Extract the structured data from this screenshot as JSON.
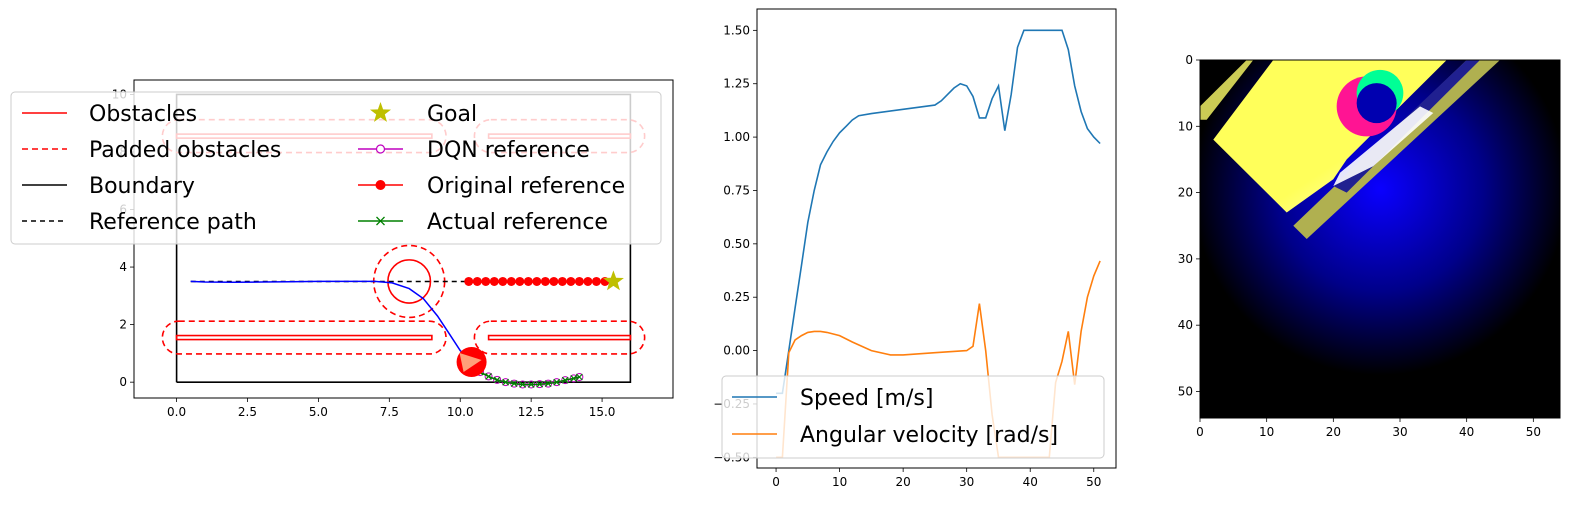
{
  "chart_data": [
    {
      "type": "line",
      "xlim": [
        -1.5,
        17.5
      ],
      "ylim": [
        -0.55,
        10.5
      ],
      "xticks": [
        0.0,
        2.5,
        5.0,
        7.5,
        10.0,
        12.5,
        15.0
      ],
      "xtick_labels": [
        "0.0",
        "2.5",
        "5.0",
        "7.5",
        "10.0",
        "12.5",
        "15.0"
      ],
      "yticks": [
        0,
        2,
        4,
        6,
        8,
        10
      ],
      "ytick_labels": [
        "0",
        "2",
        "4",
        "6",
        "8",
        "10"
      ],
      "legend": {
        "placement": "top",
        "ncol": 2,
        "entries": [
          "Obstacles",
          "Padded obstacles",
          "Boundary",
          "Reference path",
          "Goal",
          "DQN reference",
          "Original reference",
          "Actual reference"
        ]
      },
      "boundary": [
        [
          0,
          0
        ],
        [
          16,
          0
        ],
        [
          16,
          10
        ],
        [
          0,
          10
        ],
        [
          0,
          0
        ]
      ],
      "obstacles": [
        {
          "shape": "bar",
          "x": [
            0,
            9
          ],
          "y": [
            1.48,
            1.62
          ],
          "pad": 0.5
        },
        {
          "shape": "bar",
          "x": [
            11,
            16
          ],
          "y": [
            1.48,
            1.62
          ],
          "pad": 0.5
        },
        {
          "shape": "bar",
          "x": [
            0,
            9
          ],
          "y": [
            8.48,
            8.62
          ],
          "pad": 0.5
        },
        {
          "shape": "bar",
          "x": [
            11,
            16
          ],
          "y": [
            8.48,
            8.62
          ],
          "pad": 0.5
        },
        {
          "shape": "circle",
          "center": [
            8.2,
            3.5
          ],
          "radius": 0.75,
          "pad": 0.5
        }
      ],
      "reference_path": {
        "x": [
          0.5,
          15.4
        ],
        "y": [
          3.5,
          3.5
        ]
      },
      "goal": [
        15.4,
        3.5
      ],
      "robot": {
        "x": 10.4,
        "y": 0.7
      },
      "trajectory": {
        "x": [
          0.5,
          1.0,
          2.0,
          3.0,
          4.0,
          5.0,
          6.0,
          7.0,
          7.6,
          8.2,
          8.7,
          9.2,
          9.6,
          10.0,
          10.4
        ],
        "y": [
          3.5,
          3.48,
          3.47,
          3.48,
          3.49,
          3.5,
          3.5,
          3.5,
          3.45,
          3.25,
          2.9,
          2.3,
          1.7,
          1.1,
          0.7
        ]
      },
      "original_reference": {
        "x": [
          10.3,
          10.6,
          10.9,
          11.2,
          11.5,
          11.8,
          12.1,
          12.4,
          12.7,
          13.0,
          13.3,
          13.6,
          13.9,
          14.2,
          14.5,
          14.8,
          15.1
        ],
        "y": [
          3.5,
          3.5,
          3.5,
          3.5,
          3.5,
          3.5,
          3.5,
          3.5,
          3.5,
          3.5,
          3.5,
          3.5,
          3.5,
          3.5,
          3.5,
          3.5,
          3.5
        ]
      },
      "dqn_reference": {
        "x": [
          10.7,
          11.0,
          11.3,
          11.6,
          11.9,
          12.2,
          12.5,
          12.8,
          13.1,
          13.4,
          13.7,
          14.0,
          14.2
        ],
        "y": [
          0.35,
          0.2,
          0.08,
          0.0,
          -0.05,
          -0.08,
          -0.08,
          -0.07,
          -0.05,
          0.0,
          0.07,
          0.13,
          0.18
        ]
      },
      "actual_reference": {
        "x": [
          10.7,
          11.0,
          11.3,
          11.6,
          11.9,
          12.2,
          12.5,
          12.8,
          13.1,
          13.4,
          13.7,
          14.0,
          14.2
        ],
        "y": [
          0.35,
          0.2,
          0.08,
          0.0,
          -0.05,
          -0.08,
          -0.08,
          -0.07,
          -0.05,
          0.0,
          0.07,
          0.13,
          0.18
        ]
      }
    },
    {
      "type": "line",
      "xlim": [
        -3,
        53.5
      ],
      "ylim": [
        -0.55,
        1.6
      ],
      "xticks": [
        0,
        10,
        20,
        30,
        40,
        50
      ],
      "xtick_labels": [
        "0",
        "10",
        "20",
        "30",
        "40",
        "50"
      ],
      "yticks": [
        -0.5,
        -0.25,
        0.0,
        0.25,
        0.5,
        0.75,
        1.0,
        1.25,
        1.5
      ],
      "ytick_labels": [
        "−0.50",
        "−0.25",
        "0.00",
        "0.25",
        "0.50",
        "0.75",
        "1.00",
        "1.25",
        "1.50"
      ],
      "legend": {
        "placement": "lower-right"
      },
      "series": [
        {
          "name": "Speed [m/s]",
          "color": "#1f77b4",
          "x": [
            0,
            1,
            2,
            3,
            4,
            5,
            6,
            7,
            8,
            9,
            10,
            11,
            12,
            13,
            15,
            20,
            25,
            26,
            27,
            28,
            29,
            30,
            31,
            32,
            33,
            34,
            35,
            36,
            37,
            38,
            39,
            40,
            41,
            42,
            43,
            44,
            45,
            46,
            47,
            48,
            49,
            50,
            51
          ],
          "y": [
            -0.2,
            -0.2,
            0.0,
            0.2,
            0.4,
            0.6,
            0.75,
            0.87,
            0.93,
            0.98,
            1.02,
            1.05,
            1.08,
            1.1,
            1.11,
            1.13,
            1.15,
            1.17,
            1.2,
            1.23,
            1.25,
            1.24,
            1.19,
            1.09,
            1.09,
            1.18,
            1.24,
            1.03,
            1.2,
            1.42,
            1.5,
            1.5,
            1.5,
            1.5,
            1.5,
            1.5,
            1.5,
            1.41,
            1.24,
            1.12,
            1.04,
            1.0,
            0.97
          ]
        },
        {
          "name": "Angular velocity [rad/s]",
          "color": "#ff7f0e",
          "x": [
            0,
            1,
            2,
            3,
            4,
            5,
            6,
            7,
            8,
            10,
            12,
            15,
            18,
            20,
            25,
            30,
            31,
            32,
            33,
            34,
            35,
            40,
            43,
            44,
            45,
            46,
            47,
            48,
            49,
            50,
            51
          ],
          "y": [
            -0.5,
            -0.5,
            -0.01,
            0.05,
            0.07,
            0.085,
            0.09,
            0.09,
            0.085,
            0.07,
            0.04,
            0.0,
            -0.02,
            -0.02,
            -0.01,
            0.0,
            0.02,
            0.22,
            0.0,
            -0.3,
            -0.5,
            -0.5,
            -0.5,
            -0.15,
            -0.05,
            0.09,
            -0.16,
            0.09,
            0.25,
            0.35,
            0.42
          ]
        }
      ]
    },
    {
      "type": "heatmap",
      "xlim": [
        0,
        54
      ],
      "ylim": [
        54,
        0
      ],
      "xticks": [
        0,
        10,
        20,
        30,
        40,
        50
      ],
      "xtick_labels": [
        "0",
        "10",
        "20",
        "30",
        "40",
        "50"
      ],
      "yticks": [
        0,
        10,
        20,
        30,
        40,
        50
      ],
      "ytick_labels": [
        "0",
        "10",
        "20",
        "30",
        "40",
        "50"
      ],
      "colors": {
        "background": "#000000",
        "center_glow": "#0a00ff",
        "free_space": "#ffff5a",
        "free_space_light": "#ffffe6",
        "obstacle_mark": "#ff1493",
        "goal_mark": "#00ff96",
        "path_mark": "#ffffff"
      }
    }
  ]
}
